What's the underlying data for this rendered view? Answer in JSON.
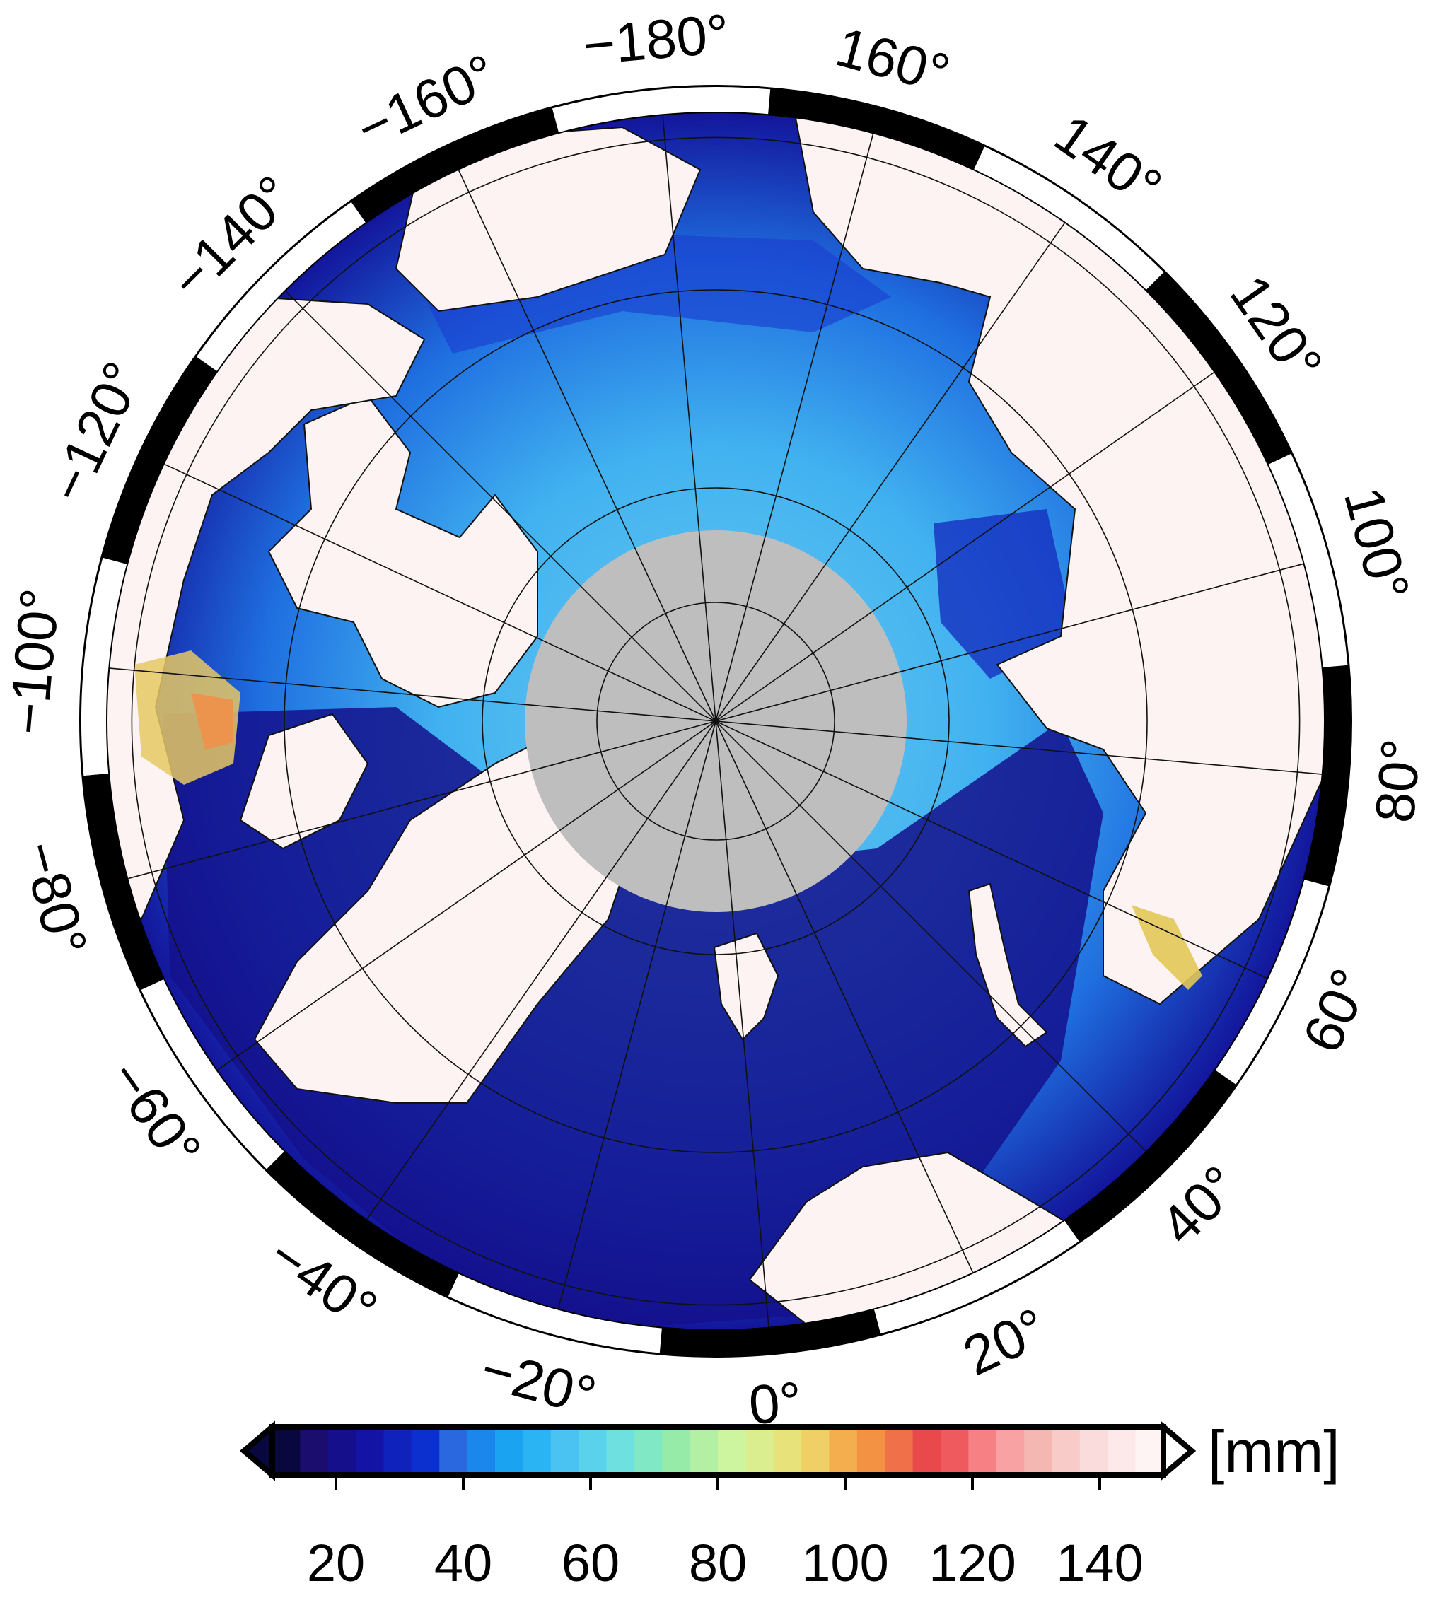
{
  "map": {
    "projection": "north-polar-stereographic",
    "graticule_parallels_deg": [
      60,
      70,
      80,
      85
    ],
    "graticule_meridian_step_deg": 20,
    "pole_hole_color": "#bebebe",
    "land_color": "#fcf3f2",
    "frame_colors": [
      "#000000",
      "#ffffff"
    ],
    "longitude_labels": [
      {
        "lon": 0,
        "text": "0°"
      },
      {
        "lon": 20,
        "text": "20°"
      },
      {
        "lon": 40,
        "text": "40°"
      },
      {
        "lon": 60,
        "text": "60°"
      },
      {
        "lon": 80,
        "text": "80°"
      },
      {
        "lon": 100,
        "text": "100°"
      },
      {
        "lon": 120,
        "text": "120°"
      },
      {
        "lon": 140,
        "text": "140°"
      },
      {
        "lon": 160,
        "text": "160°"
      },
      {
        "lon": 180,
        "text": "−180°"
      },
      {
        "lon": -160,
        "text": "−160°"
      },
      {
        "lon": -140,
        "text": "−140°"
      },
      {
        "lon": -120,
        "text": "−120°"
      },
      {
        "lon": -100,
        "text": "−100°"
      },
      {
        "lon": -80,
        "text": "−80°"
      },
      {
        "lon": -60,
        "text": "−60°"
      },
      {
        "lon": -40,
        "text": "−40°"
      },
      {
        "lon": -20,
        "text": "−20°"
      }
    ]
  },
  "colorbar": {
    "unit_label": "[mm]",
    "range": [
      10,
      150
    ],
    "step": 5,
    "extend": "both",
    "ticks": [
      {
        "value": 20,
        "label": "20"
      },
      {
        "value": 40,
        "label": "40"
      },
      {
        "value": 60,
        "label": "60"
      },
      {
        "value": 80,
        "label": "80"
      },
      {
        "value": 100,
        "label": "100"
      },
      {
        "value": 120,
        "label": "120"
      },
      {
        "value": 140,
        "label": "140"
      }
    ],
    "colors": [
      "#08083f",
      "#1a0d6e",
      "#150f8c",
      "#1314a5",
      "#1022bc",
      "#0c30cf",
      "#2a68e0",
      "#1b86eb",
      "#1aa3f0",
      "#2bb4f4",
      "#4bc3f2",
      "#5bd2ec",
      "#6fe0e0",
      "#80e8c4",
      "#96eba8",
      "#b3f0a3",
      "#cdf5a0",
      "#dbee8f",
      "#e8e27a",
      "#f0cf66",
      "#f5ae4e",
      "#f49244",
      "#ef7049",
      "#e9494a",
      "#ee5a5e",
      "#f78085",
      "#f9a2a4",
      "#f4b7b2",
      "#f8cbc9",
      "#fbdcdc",
      "#fde9e9",
      "#fef4f4"
    ]
  }
}
